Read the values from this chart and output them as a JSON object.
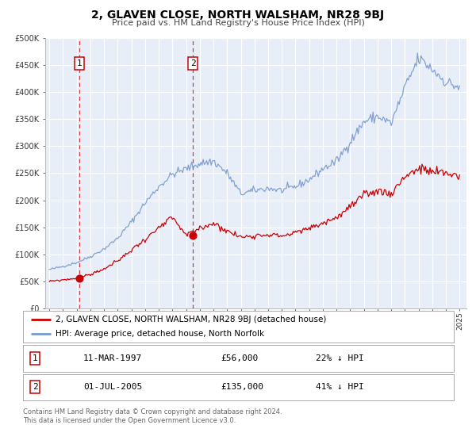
{
  "title": "2, GLAVEN CLOSE, NORTH WALSHAM, NR28 9BJ",
  "subtitle": "Price paid vs. HM Land Registry's House Price Index (HPI)",
  "background_color": "#ffffff",
  "plot_bg_color": "#e8eef8",
  "grid_color": "#ffffff",
  "red_line_color": "#cc0000",
  "blue_line_color": "#7799cc",
  "sale1_date_num": 1997.19,
  "sale1_price": 56000,
  "sale1_label": "1",
  "sale2_date_num": 2005.5,
  "sale2_price": 135000,
  "sale2_label": "2",
  "xmin": 1994.7,
  "xmax": 2025.5,
  "ymin": 0,
  "ymax": 500000,
  "yticks": [
    0,
    50000,
    100000,
    150000,
    200000,
    250000,
    300000,
    350000,
    400000,
    450000,
    500000
  ],
  "ytick_labels": [
    "£0",
    "£50K",
    "£100K",
    "£150K",
    "£200K",
    "£250K",
    "£300K",
    "£350K",
    "£400K",
    "£450K",
    "£500K"
  ],
  "xticks": [
    1995,
    1996,
    1997,
    1998,
    1999,
    2000,
    2001,
    2002,
    2003,
    2004,
    2005,
    2006,
    2007,
    2008,
    2009,
    2010,
    2011,
    2012,
    2013,
    2014,
    2015,
    2016,
    2017,
    2018,
    2019,
    2020,
    2021,
    2022,
    2023,
    2024,
    2025
  ],
  "legend_red_label": "2, GLAVEN CLOSE, NORTH WALSHAM, NR28 9BJ (detached house)",
  "legend_blue_label": "HPI: Average price, detached house, North Norfolk",
  "table_row1": [
    "1",
    "11-MAR-1997",
    "£56,000",
    "22% ↓ HPI"
  ],
  "table_row2": [
    "2",
    "01-JUL-2005",
    "£135,000",
    "41% ↓ HPI"
  ],
  "footer_line1": "Contains HM Land Registry data © Crown copyright and database right 2024.",
  "footer_line2": "This data is licensed under the Open Government Licence v3.0.",
  "hpi_anchors_x": [
    1995,
    1996,
    1997,
    1998,
    1999,
    2000,
    2001,
    2002,
    2003,
    2004,
    2005,
    2006,
    2007,
    2008,
    2009,
    2010,
    2011,
    2012,
    2013,
    2014,
    2015,
    2016,
    2017,
    2018,
    2019,
    2020,
    2021,
    2022,
    2023,
    2024,
    2025
  ],
  "hpi_anchors_y": [
    72000,
    78000,
    85000,
    96000,
    110000,
    130000,
    160000,
    195000,
    225000,
    248000,
    258000,
    268000,
    272000,
    250000,
    212000,
    218000,
    222000,
    218000,
    225000,
    238000,
    258000,
    272000,
    308000,
    345000,
    355000,
    342000,
    408000,
    462000,
    442000,
    418000,
    408000
  ],
  "red_anchors_x": [
    1995,
    1996,
    1997,
    1998,
    1999,
    2000,
    2001,
    2002,
    2003,
    2004,
    2005,
    2006,
    2007,
    2008,
    2009,
    2010,
    2011,
    2012,
    2013,
    2014,
    2015,
    2016,
    2017,
    2018,
    2019,
    2020,
    2021,
    2022,
    2023,
    2024,
    2025
  ],
  "red_anchors_y": [
    50000,
    53000,
    56000,
    63000,
    73000,
    88000,
    108000,
    128000,
    148000,
    168000,
    135000,
    148000,
    158000,
    143000,
    132000,
    135000,
    137000,
    134000,
    140000,
    148000,
    158000,
    168000,
    188000,
    208000,
    218000,
    212000,
    245000,
    258000,
    252000,
    250000,
    245000
  ]
}
